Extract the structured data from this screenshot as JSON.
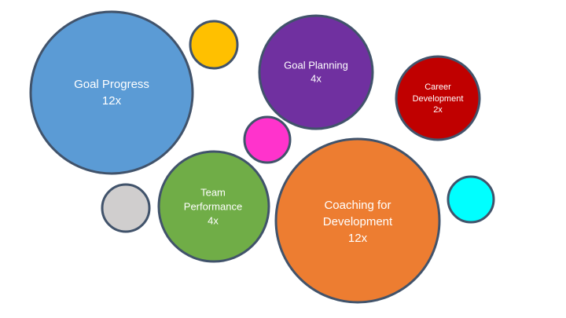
{
  "nodes": [
    {
      "lines": [
        "Goal Progress",
        "12x"
      ]
    },
    {
      "lines": [
        "Goal Planning",
        "4x"
      ]
    },
    {
      "lines": [
        "Career",
        "Development",
        "2x"
      ]
    },
    {
      "lines": [
        "Team",
        "Performance",
        "4x"
      ]
    },
    {
      "lines": [
        "Coaching for",
        "Development",
        "12x"
      ]
    }
  ]
}
